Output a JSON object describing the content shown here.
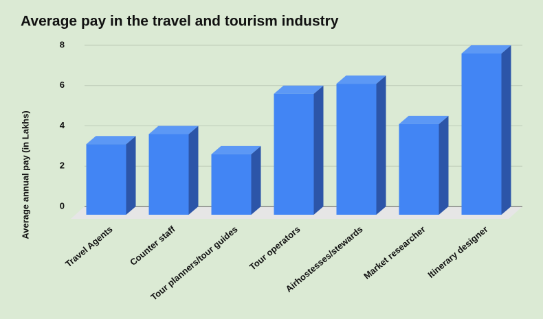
{
  "chart_data": {
    "type": "bar3d",
    "title": "Average pay in the travel and tourism industry",
    "y_label": "Average annual pay (in Lakhs)",
    "categories": [
      "Travel Agents",
      "Counter staff",
      "Tour planners/tour guides",
      "Tour operators",
      "Airhostesses/stewards",
      "Market researcher",
      "Itinerary designer"
    ],
    "values": [
      3.5,
      4,
      3,
      6,
      6.5,
      4.5,
      8
    ],
    "color": "#4285f4",
    "ylim": [
      0,
      8
    ],
    "yticks": [
      0,
      2,
      4,
      6,
      8
    ],
    "grid": true
  }
}
